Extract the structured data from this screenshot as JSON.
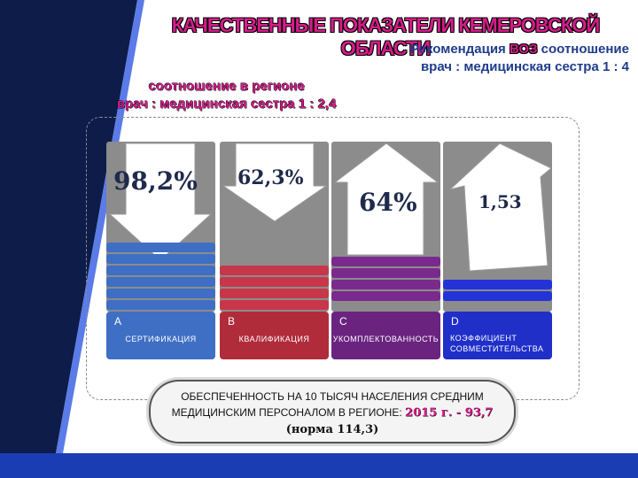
{
  "title": "КАЧЕСТВЕННЫЕ ПОКАЗАТЕЛИ КЕМЕРОВСКОЙ ОБЛАСТИ",
  "recommendation": {
    "prefix": "Рекомендация ",
    "who": "ВОЗ",
    "suffix": " соотношение",
    "line2": "врач : медицинская сестра 1 : 4"
  },
  "region_ratio": {
    "line1": "соотношение в регионе",
    "line2": "врач : медицинская сестра 1 : 2,4"
  },
  "columns": [
    {
      "letter": "A",
      "name": "СЕРТИФИКАЦИЯ",
      "value": "98,2%",
      "color": "#3f6fc4"
    },
    {
      "letter": "B",
      "name": "КВАЛИФИКАЦИЯ",
      "value": "62,3%",
      "color": "#c8364a"
    },
    {
      "letter": "C",
      "name": "УКОМПЛЕКТОВАННОСТЬ",
      "value": "64%",
      "color": "#7a2a8c"
    },
    {
      "letter": "D",
      "name": "КОЭФФИЦИЕНТ СОВМЕСТИТЕЛЬСТВА",
      "value": "1,53",
      "color": "#2433d6"
    }
  ],
  "summary": {
    "line1": "ОБЕСПЕЧЕННОСТЬ НА 10 ТЫСЯЧ НАСЕЛЕНИЯ СРЕДНИМ",
    "line2_prefix": "МЕДИЦИНСКИМ ПЕРСОНАЛОМ В РЕГИОНЕ: ",
    "line2_value": "2015 г. - 93,7",
    "line3": "(норма 114,3)"
  }
}
